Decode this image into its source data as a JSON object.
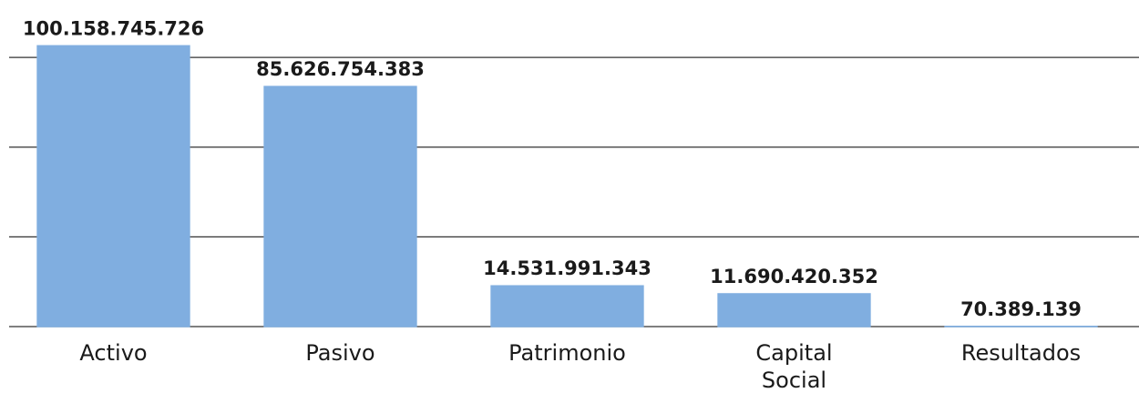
{
  "chart_data": {
    "type": "bar",
    "categories": [
      "Activo",
      "Pasivo",
      "Patrimonio",
      "Capital Social",
      "Resultados"
    ],
    "values": [
      100158745726,
      85626754383,
      14531991343,
      11690420352,
      70389139
    ],
    "value_labels": [
      "100.158.745.726",
      "85.626.754.383",
      "14.531.991.343",
      "11.690.420.352",
      "70.389.139"
    ],
    "color": "#80aee0",
    "ylim": [
      0,
      110000000000
    ],
    "yticks": [
      0,
      32000000000,
      64000000000,
      96000000000
    ],
    "grid": true
  }
}
